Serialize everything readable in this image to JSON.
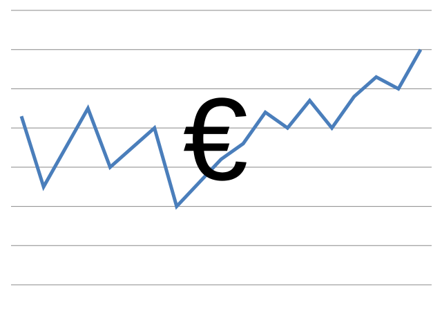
{
  "chart_data": {
    "type": "line",
    "annotation": "€",
    "categories": [
      null,
      null,
      null,
      null,
      null,
      null,
      null,
      null,
      null,
      null,
      null,
      null,
      null,
      null,
      null,
      null,
      null,
      null,
      null
    ],
    "series": [
      {
        "color": "#4a7ebb",
        "values": [
          4.3,
          2.5,
          3.5,
          4.5,
          3.0,
          3.5,
          4.0,
          2.0,
          2.6,
          3.2,
          3.6,
          4.4,
          4.0,
          4.7,
          4.0,
          4.8,
          5.3,
          5.0,
          6.0
        ]
      }
    ],
    "ylim": [
      0,
      7
    ],
    "yticks": [
      0,
      1,
      2,
      3,
      4,
      5,
      6,
      7
    ],
    "grid": true
  }
}
